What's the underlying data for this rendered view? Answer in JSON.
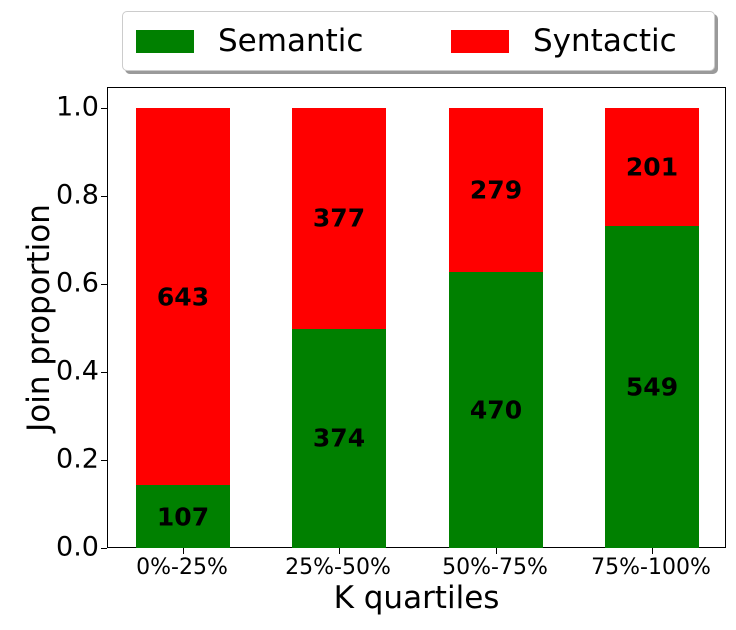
{
  "chart_data": {
    "type": "bar",
    "stacked": true,
    "normalized": true,
    "title": "",
    "xlabel": "K quartiles",
    "ylabel": "Join proportion",
    "categories": [
      "0%-25%",
      "25%-50%",
      "50%-75%",
      "75%-100%"
    ],
    "series": [
      {
        "name": "Semantic",
        "color": "#008000",
        "counts": [
          107,
          374,
          470,
          549
        ],
        "values": [
          0.143,
          0.498,
          0.627,
          0.732
        ]
      },
      {
        "name": "Syntactic",
        "color": "#ff0000",
        "counts": [
          643,
          377,
          279,
          201
        ],
        "values": [
          0.857,
          0.502,
          0.373,
          0.268
        ]
      }
    ],
    "ylim": [
      0,
      1.05
    ],
    "yticks": [
      "0.0",
      "0.2",
      "0.4",
      "0.6",
      "0.8",
      "1.0"
    ],
    "grid": false,
    "legend_position": "top, outside plot, 2 columns"
  },
  "legend": {
    "items": [
      {
        "label": "Semantic",
        "color": "#008000"
      },
      {
        "label": "Syntactic",
        "color": "#ff0000"
      }
    ]
  }
}
